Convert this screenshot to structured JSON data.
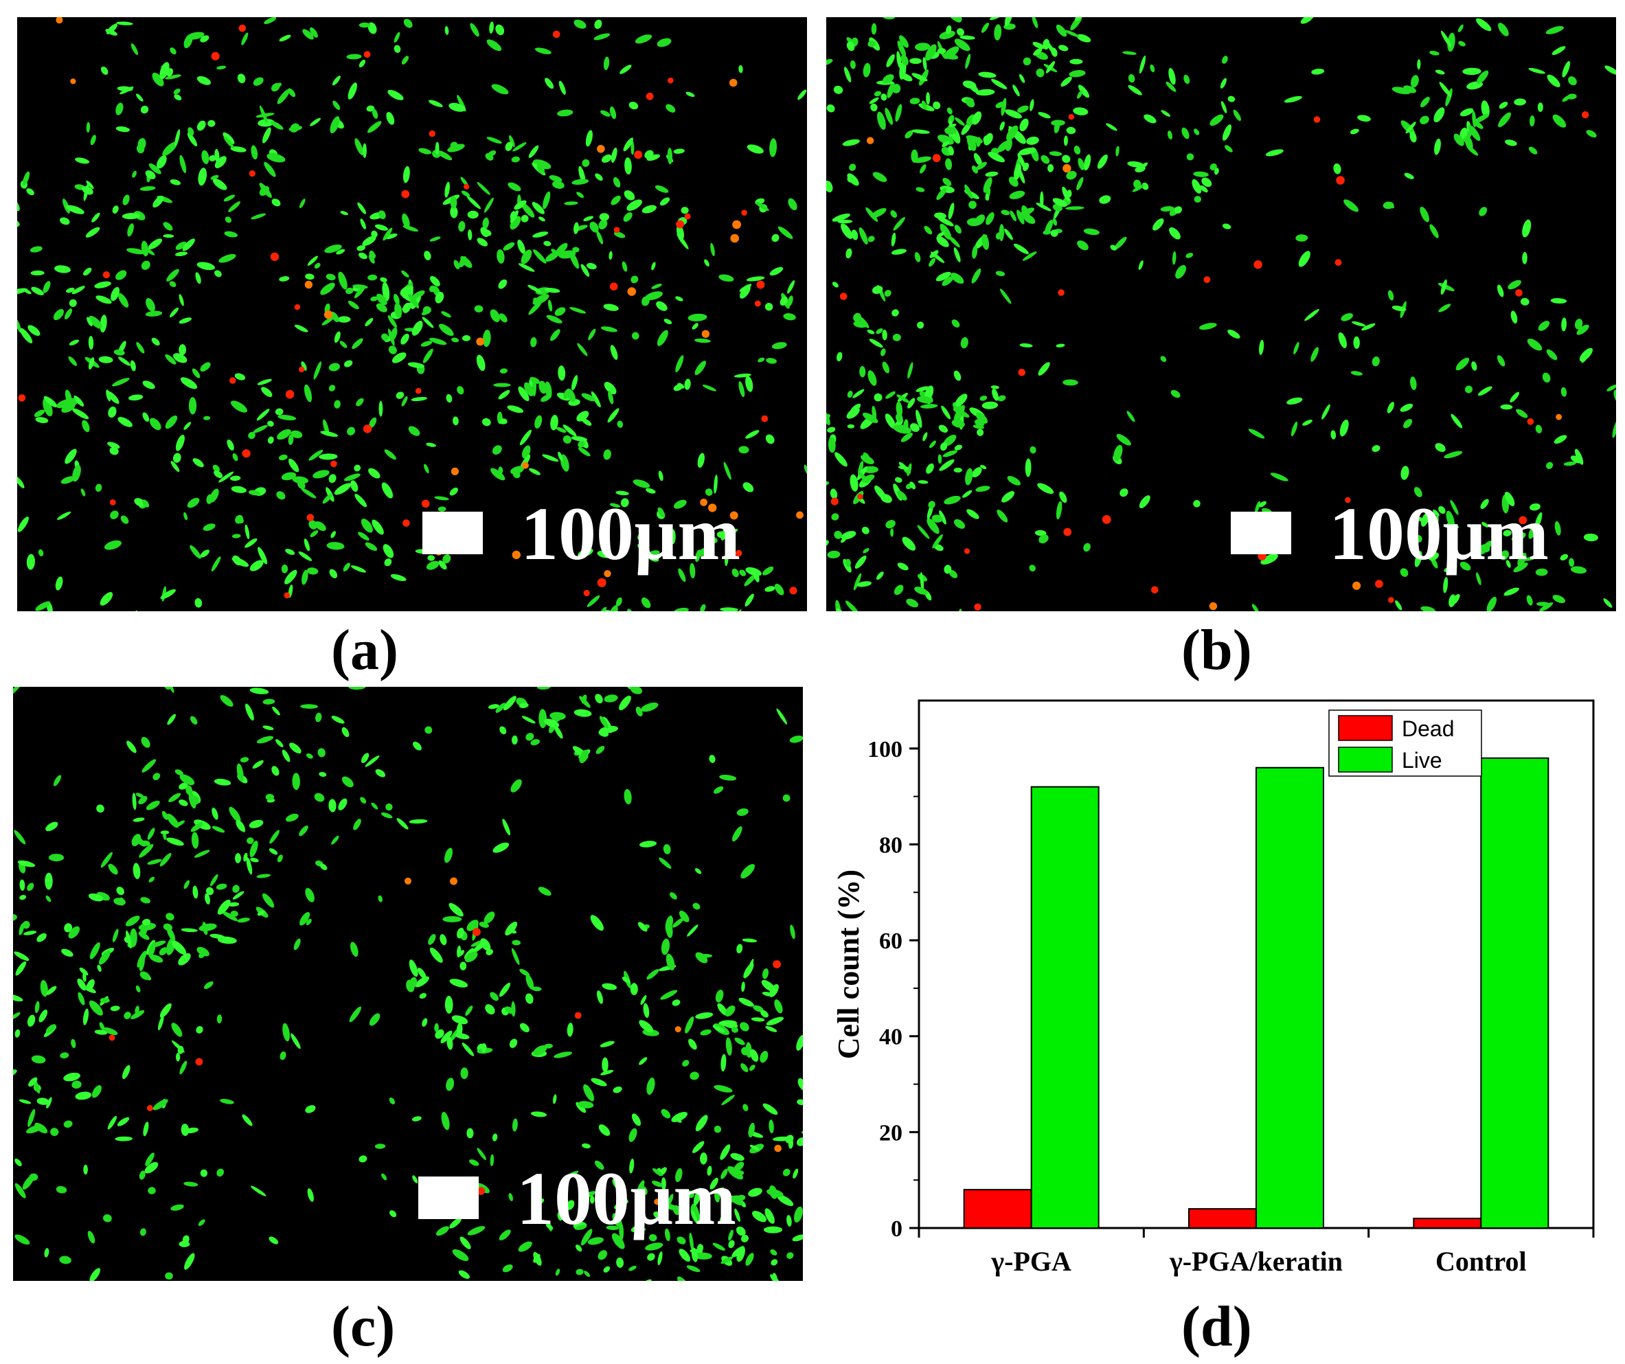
{
  "panels": [
    {
      "label": "(a)",
      "scale_text": "100µm",
      "dead_count": 60
    },
    {
      "label": "(b)",
      "scale_text": "100µm",
      "dead_count": 30
    },
    {
      "label": "(c)",
      "scale_text": "100µm",
      "dead_count": 12
    },
    {
      "label": "(d)"
    }
  ],
  "colors": {
    "dead": "#ff0000",
    "live": "#00ee00",
    "background": "#000000"
  },
  "chart_data": {
    "type": "bar",
    "categories": [
      "γ-PGA",
      "γ-PGA/keratin",
      "Control"
    ],
    "series": [
      {
        "name": "Dead",
        "values": [
          8,
          4,
          2
        ],
        "color": "#ff0000"
      },
      {
        "name": "Live",
        "values": [
          92,
          96,
          98
        ],
        "color": "#00ee00"
      }
    ],
    "ylabel": "Cell count (%)",
    "xlabel": "",
    "ylim": [
      0,
      110
    ],
    "yticks": [
      0,
      20,
      40,
      60,
      80,
      100
    ],
    "legend_position": "top-right",
    "grid": false
  }
}
